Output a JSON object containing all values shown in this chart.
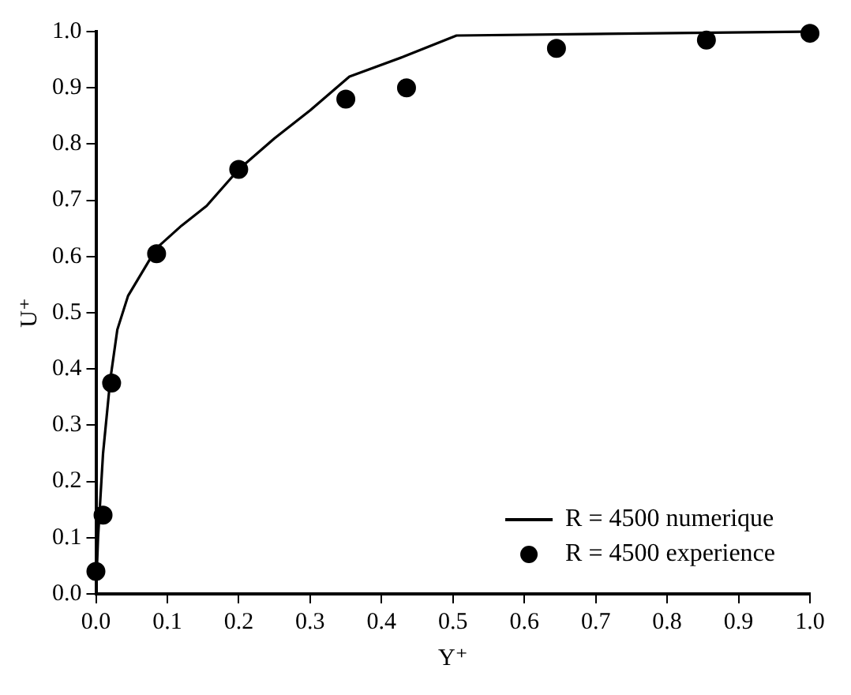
{
  "chart_data": {
    "type": "line",
    "xlabel": "Y⁺",
    "ylabel": "U⁺",
    "xlim": [
      0,
      1
    ],
    "ylim": [
      0,
      1
    ],
    "xticks": [
      {
        "value": 0,
        "label": "0.0"
      },
      0.1,
      0.2,
      0.3,
      0.4,
      0.5,
      0.6,
      0.7,
      0.8,
      0.9,
      {
        "value": 1,
        "label": "1.0"
      }
    ],
    "yticks": [
      {
        "value": 0,
        "label": "0.0"
      },
      0.1,
      0.2,
      0.3,
      0.4,
      0.5,
      0.6,
      0.7,
      0.8,
      0.9,
      {
        "value": 1,
        "label": "1.0"
      }
    ],
    "grid": false,
    "legend": "bottom right",
    "series": [
      {
        "name": "R = 4500 numerique",
        "type": "line",
        "color": "#000000",
        "marker": "none",
        "line_style": "solid",
        "x": [
          0,
          0.003,
          0.01,
          0.02,
          0.03,
          0.045,
          0.085,
          0.12,
          0.155,
          0.2,
          0.25,
          0.3,
          0.355,
          0.43,
          0.505,
          1.0
        ],
        "values": [
          0,
          0.1,
          0.25,
          0.38,
          0.47,
          0.53,
          0.615,
          0.655,
          0.69,
          0.755,
          0.81,
          0.86,
          0.92,
          0.955,
          0.993,
          1.0
        ]
      },
      {
        "name": "R = 4500 experience",
        "type": "scatter",
        "color": "#000000",
        "marker": "circle",
        "x": [
          0,
          0.01,
          0.022,
          0.085,
          0.2,
          0.35,
          0.435,
          0.645,
          0.855,
          1.0
        ],
        "values": [
          0.04,
          0.14,
          0.375,
          0.605,
          0.755,
          0.88,
          0.9,
          0.97,
          0.985,
          0.997
        ]
      }
    ]
  }
}
